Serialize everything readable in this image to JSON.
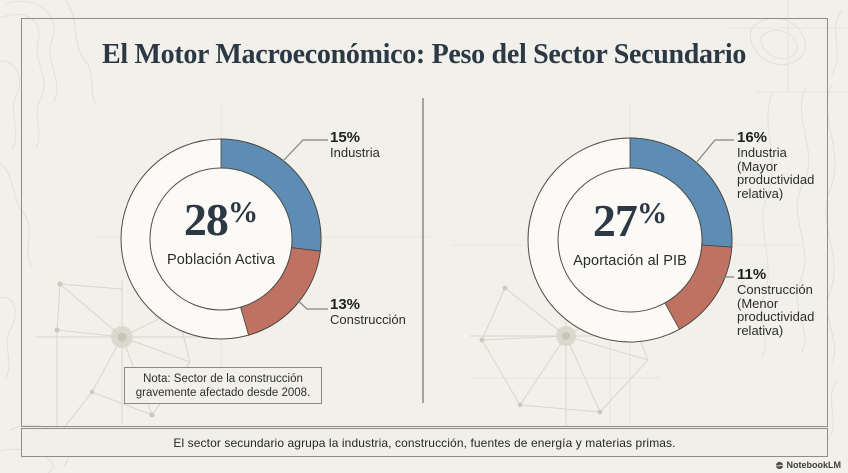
{
  "page": {
    "title": "El Motor Macroeconómico: Peso del Sector Secundario"
  },
  "note": {
    "line1": "Nota: Sector de la construcción",
    "line2": "gravemente afectado desde 2008."
  },
  "footer": {
    "text": "El sector secundario agrupa la industria, construcción, fuentes de energía y materias primas."
  },
  "watermark": {
    "label": "NotebookLM"
  },
  "colors": {
    "background": "#f2f0ea",
    "frame_border": "#8f8d86",
    "title_dark": "#2c3945",
    "industry_blue": "#5d8cb4",
    "construction_red": "#bf7261",
    "donut_fill": "#fbfaf6",
    "donut_outline": "#504d47"
  },
  "chart_data": [
    {
      "type": "pie",
      "variant": "donut",
      "title": "Población Activa",
      "center_value": "28",
      "center_unit": "%",
      "center_label": "Población Activa",
      "total_pct": 28,
      "legend_position": "right",
      "segments": [
        {
          "key": "industria",
          "label": "Industria",
          "display": "15%",
          "value_pct": 15,
          "color": "#5d8cb4",
          "angle_start": 0,
          "angle_end": 97
        },
        {
          "key": "construccion",
          "label": "Construcción",
          "display": "13%",
          "value_pct": 13,
          "color": "#bf7261",
          "angle_start": 97,
          "angle_end": 164
        }
      ]
    },
    {
      "type": "pie",
      "variant": "donut",
      "title": "Aportación al PIB",
      "center_value": "27",
      "center_unit": "%",
      "center_label": "Aportación al PIB",
      "total_pct": 27,
      "legend_position": "right",
      "segments": [
        {
          "key": "industria",
          "label": "Industria",
          "sublabel": "(Mayor productividad relativa)",
          "display": "16%",
          "value_pct": 16,
          "color": "#5d8cb4",
          "angle_start": 0,
          "angle_end": 94
        },
        {
          "key": "construccion",
          "label": "Construcción",
          "sublabel": "(Menor productividad relativa)",
          "display": "11%",
          "value_pct": 11,
          "color": "#bf7261",
          "angle_start": 94,
          "angle_end": 151
        }
      ]
    }
  ]
}
